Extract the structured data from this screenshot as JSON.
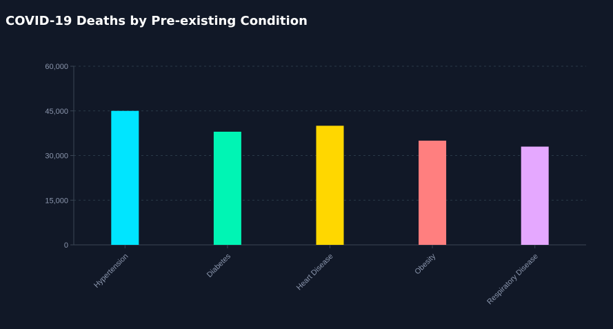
{
  "chart_data": {
    "type": "bar",
    "title": "COVID-19 Deaths by Pre-existing Condition",
    "xlabel": "",
    "ylabel": "",
    "categories": [
      "Hypertension",
      "Diabetes",
      "Heart Disease",
      "Obesity",
      "Respiratory Disease"
    ],
    "values": [
      45000,
      38000,
      40000,
      35000,
      33000
    ],
    "colors": [
      "#00e5ff",
      "#00f5b4",
      "#ffd700",
      "#ff7f7f",
      "#e5a8ff"
    ],
    "ylim": [
      0,
      60000
    ],
    "yticks": [
      0,
      15000,
      30000,
      45000,
      60000
    ],
    "ytick_labels": [
      "0",
      "15,000",
      "30,000",
      "45,000",
      "60,000"
    ],
    "grid": true,
    "legend": "none"
  }
}
